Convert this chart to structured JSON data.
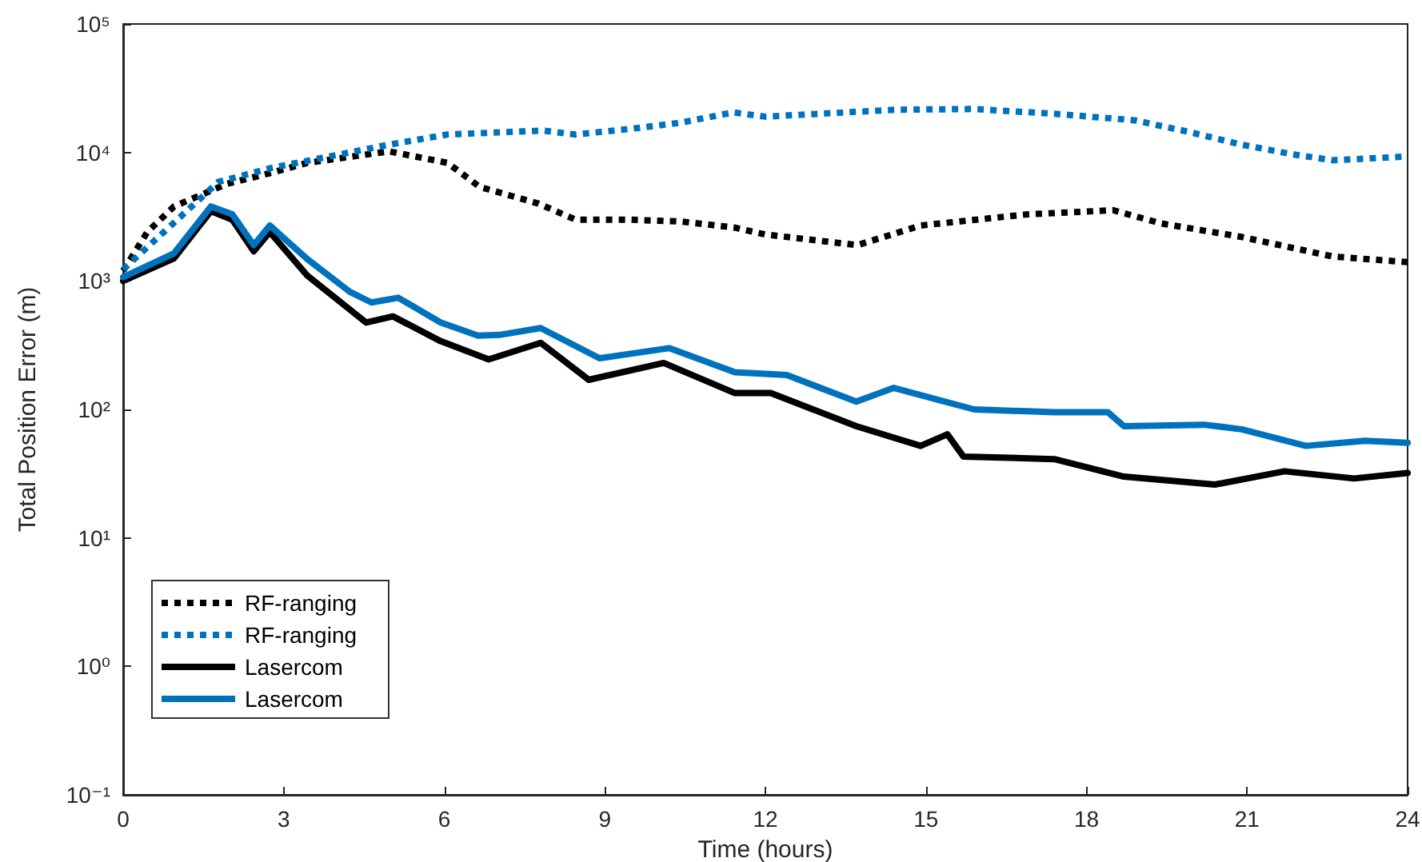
{
  "chart_data": {
    "type": "line",
    "xlabel": "Time (hours)",
    "ylabel": "Total Position Error (m)",
    "xlim": [
      0,
      24
    ],
    "xticks": [
      0,
      3,
      6,
      9,
      12,
      15,
      18,
      21,
      24
    ],
    "ylim": [
      0.1,
      100000
    ],
    "log": "y",
    "yticks": [
      {
        "value": 0.1,
        "label": "10⁻¹"
      },
      {
        "value": 1,
        "label": "10⁰"
      },
      {
        "value": 10,
        "label": "10¹"
      },
      {
        "value": 100,
        "label": "10²"
      },
      {
        "value": 1000,
        "label": "10³"
      },
      {
        "value": 10000,
        "label": "10⁴"
      },
      {
        "value": 100000,
        "label": "10⁵"
      }
    ],
    "grid": false,
    "legend": "bottom left",
    "marker": "none",
    "series": [
      {
        "name": "RF-ranging",
        "color": "#000000",
        "line_style": "dotted",
        "x": [
          0,
          0.45,
          0.95,
          1.94,
          2.74,
          3.44,
          4.97,
          6.06,
          6.66,
          7.76,
          8.45,
          9.44,
          10.43,
          11.43,
          12.0,
          13.72,
          14.9,
          16.9,
          18.5,
          19.4,
          20.9,
          22.6,
          24
        ],
        "values": [
          1200,
          2400,
          3800,
          5700,
          6900,
          8300,
          10200,
          8300,
          5400,
          4000,
          3000,
          3000,
          2900,
          2600,
          2300,
          1900,
          2700,
          3300,
          3550,
          2800,
          2200,
          1550,
          1400
        ]
      },
      {
        "name": "RF-ranging",
        "color": "#0072bd",
        "line_style": "dotted",
        "x": [
          0,
          1.78,
          2.78,
          4.97,
          6.06,
          7.85,
          8.45,
          9.44,
          10.4,
          11.4,
          12.0,
          14.42,
          15.9,
          17.4,
          18.9,
          19.9,
          20.9,
          21.9,
          22.6,
          24
        ],
        "values": [
          1230,
          5900,
          7600,
          11500,
          13800,
          14800,
          13800,
          15200,
          17000,
          20500,
          19000,
          21500,
          21800,
          20000,
          17800,
          14500,
          11500,
          9600,
          8700,
          9300
        ]
      },
      {
        "name": "Lasercom",
        "color": "#000000",
        "line_style": "solid",
        "x": [
          0,
          0.95,
          1.64,
          2.04,
          2.44,
          2.74,
          3.44,
          4.54,
          5.04,
          5.93,
          6.83,
          7.8,
          8.7,
          10.1,
          11.43,
          12.1,
          13.7,
          14.9,
          15.4,
          15.7,
          17.4,
          18.7,
          20.4,
          21.7,
          23,
          24
        ],
        "values": [
          1000,
          1500,
          3500,
          3000,
          1700,
          2400,
          1100,
          475,
          530,
          340,
          245,
          330,
          170,
          230,
          134,
          134,
          74,
          52,
          64,
          43,
          41,
          30,
          26,
          33,
          29,
          32
        ]
      },
      {
        "name": "Lasercom",
        "color": "#0072bd",
        "line_style": "solid",
        "x": [
          0,
          0.95,
          1.64,
          2.04,
          2.44,
          2.74,
          3.44,
          4.24,
          4.64,
          5.14,
          5.93,
          6.63,
          7.03,
          7.8,
          8.9,
          10.2,
          11.43,
          12.4,
          13.7,
          14.4,
          15.9,
          17.4,
          18.4,
          18.7,
          20.2,
          20.9,
          22.1,
          23.2,
          24
        ],
        "values": [
          1070,
          1640,
          3800,
          3300,
          1900,
          2700,
          1480,
          820,
          680,
          740,
          475,
          375,
          380,
          430,
          250,
          300,
          195,
          185,
          115,
          147,
          100,
          95,
          95,
          74,
          76,
          70,
          52,
          57,
          55
        ]
      }
    ]
  }
}
